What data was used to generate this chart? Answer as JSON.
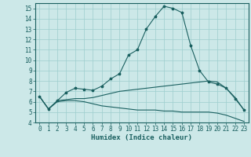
{
  "xlabel": "Humidex (Indice chaleur)",
  "xlim": [
    -0.5,
    23.5
  ],
  "ylim": [
    4,
    15.5
  ],
  "yticks": [
    4,
    5,
    6,
    7,
    8,
    9,
    10,
    11,
    12,
    13,
    14,
    15
  ],
  "xticks": [
    0,
    1,
    2,
    3,
    4,
    5,
    6,
    7,
    8,
    9,
    10,
    11,
    12,
    13,
    14,
    15,
    16,
    17,
    18,
    19,
    20,
    21,
    22,
    23
  ],
  "bg_color": "#cce8e8",
  "grid_color": "#9dcece",
  "line_color": "#1a6060",
  "line1": [
    6.5,
    5.3,
    6.1,
    6.9,
    7.3,
    7.2,
    7.1,
    7.5,
    8.2,
    8.7,
    10.5,
    11.0,
    13.0,
    14.2,
    15.2,
    15.0,
    14.6,
    11.4,
    9.0,
    7.9,
    7.7,
    7.3,
    6.3,
    5.2
  ],
  "line2": [
    6.5,
    5.3,
    6.1,
    6.2,
    6.3,
    6.3,
    6.4,
    6.6,
    6.8,
    7.0,
    7.1,
    7.2,
    7.3,
    7.4,
    7.5,
    7.6,
    7.7,
    7.8,
    7.9,
    8.0,
    7.9,
    7.3,
    6.4,
    5.2
  ],
  "line3": [
    6.5,
    5.3,
    6.0,
    6.1,
    6.1,
    6.0,
    5.8,
    5.6,
    5.5,
    5.4,
    5.3,
    5.2,
    5.2,
    5.2,
    5.1,
    5.1,
    5.0,
    5.0,
    5.0,
    5.0,
    4.9,
    4.7,
    4.4,
    4.1
  ],
  "tick_fontsize": 5.5,
  "xlabel_fontsize": 6.5,
  "ylabel_fontsize": 5.5,
  "linewidth": 0.8,
  "markersize": 2.5
}
